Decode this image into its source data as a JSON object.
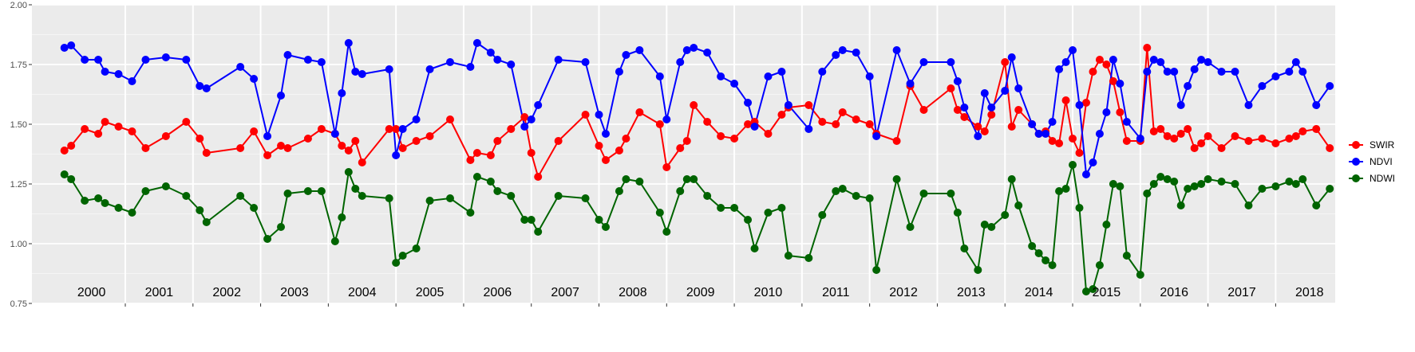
{
  "chart_data": {
    "type": "line",
    "title": "",
    "xlabel": "",
    "ylabel": "",
    "ylim": [
      0.75,
      2.0
    ],
    "xlim": [
      1999.62,
      2018.88
    ],
    "y_ticks": [
      {
        "value": 0.75,
        "label": "0.75"
      },
      {
        "value": 1.0,
        "label": "1.00"
      },
      {
        "value": 1.25,
        "label": "1.25"
      },
      {
        "value": 1.5,
        "label": "1.50"
      },
      {
        "value": 1.75,
        "label": "1.75"
      },
      {
        "value": 2.0,
        "label": "2.00"
      }
    ],
    "year_labels": [
      {
        "year": 2000,
        "label": "2000"
      },
      {
        "year": 2001,
        "label": "2001"
      },
      {
        "year": 2002,
        "label": "2002"
      },
      {
        "year": 2003,
        "label": "2003"
      },
      {
        "year": 2004,
        "label": "2004"
      },
      {
        "year": 2005,
        "label": "2005"
      },
      {
        "year": 2006,
        "label": "2006"
      },
      {
        "year": 2007,
        "label": "2007"
      },
      {
        "year": 2008,
        "label": "2008"
      },
      {
        "year": 2009,
        "label": "2009"
      },
      {
        "year": 2010,
        "label": "2010"
      },
      {
        "year": 2011,
        "label": "2011"
      },
      {
        "year": 2012,
        "label": "2012"
      },
      {
        "year": 2013,
        "label": "2013"
      },
      {
        "year": 2014,
        "label": "2014"
      },
      {
        "year": 2015,
        "label": "2015"
      },
      {
        "year": 2016,
        "label": "2016"
      },
      {
        "year": 2017,
        "label": "2017"
      },
      {
        "year": 2018,
        "label": "2018"
      }
    ],
    "year_boundaries": [
      2001,
      2002,
      2003,
      2004,
      2005,
      2006,
      2007,
      2008,
      2009,
      2010,
      2011,
      2012,
      2013,
      2014,
      2015,
      2016,
      2017,
      2018
    ],
    "x": [
      2000.1,
      2000.2,
      2000.4,
      2000.6,
      2000.7,
      2000.9,
      2001.1,
      2001.3,
      2001.6,
      2001.9,
      2002.1,
      2002.2,
      2002.7,
      2002.9,
      2003.1,
      2003.3,
      2003.4,
      2003.7,
      2003.9,
      2004.1,
      2004.2,
      2004.3,
      2004.4,
      2004.5,
      2004.9,
      2005.0,
      2005.1,
      2005.3,
      2005.5,
      2005.8,
      2006.1,
      2006.2,
      2006.4,
      2006.5,
      2006.7,
      2006.9,
      2007.0,
      2007.1,
      2007.4,
      2007.8,
      2008.0,
      2008.1,
      2008.3,
      2008.4,
      2008.6,
      2008.9,
      2009.0,
      2009.2,
      2009.3,
      2009.4,
      2009.6,
      2009.8,
      2010.0,
      2010.2,
      2010.3,
      2010.5,
      2010.7,
      2010.8,
      2011.1,
      2011.3,
      2011.5,
      2011.6,
      2011.8,
      2012.0,
      2012.1,
      2012.4,
      2012.6,
      2012.8,
      2013.2,
      2013.3,
      2013.4,
      2013.6,
      2013.7,
      2013.8,
      2014.0,
      2014.1,
      2014.2,
      2014.4,
      2014.5,
      2014.6,
      2014.7,
      2014.8,
      2014.9,
      2015.0,
      2015.1,
      2015.2,
      2015.3,
      2015.4,
      2015.5,
      2015.6,
      2015.7,
      2015.8,
      2016.0,
      2016.1,
      2016.2,
      2016.3,
      2016.4,
      2016.5,
      2016.6,
      2016.7,
      2016.8,
      2016.9,
      2017.0,
      2017.2,
      2017.4,
      2017.6,
      2017.8,
      2018.0,
      2018.2,
      2018.3,
      2018.4,
      2018.6,
      2018.8
    ],
    "series": [
      {
        "name": "SWIR",
        "color": "#ff0000",
        "values": [
          1.39,
          1.41,
          1.48,
          1.46,
          1.51,
          1.49,
          1.47,
          1.4,
          1.45,
          1.51,
          1.44,
          1.38,
          1.4,
          1.47,
          1.37,
          1.41,
          1.4,
          1.44,
          1.48,
          1.46,
          1.41,
          1.39,
          1.43,
          1.34,
          1.48,
          1.48,
          1.4,
          1.43,
          1.45,
          1.52,
          1.35,
          1.38,
          1.37,
          1.43,
          1.48,
          1.53,
          1.38,
          1.28,
          1.43,
          1.54,
          1.41,
          1.35,
          1.39,
          1.44,
          1.55,
          1.5,
          1.32,
          1.4,
          1.43,
          1.58,
          1.51,
          1.45,
          1.44,
          1.5,
          1.51,
          1.46,
          1.54,
          1.57,
          1.58,
          1.51,
          1.5,
          1.55,
          1.52,
          1.5,
          1.46,
          1.43,
          1.66,
          1.56,
          1.65,
          1.56,
          1.53,
          1.49,
          1.47,
          1.54,
          1.76,
          1.49,
          1.56,
          1.5,
          1.46,
          1.47,
          1.43,
          1.42,
          1.6,
          1.44,
          1.38,
          1.59,
          1.72,
          1.77,
          1.75,
          1.68,
          1.55,
          1.43,
          1.43,
          1.82,
          1.47,
          1.48,
          1.45,
          1.44,
          1.46,
          1.48,
          1.4,
          1.42,
          1.45,
          1.4,
          1.45,
          1.43,
          1.44,
          1.42,
          1.44,
          1.45,
          1.47,
          1.48,
          1.4
        ]
      },
      {
        "name": "NDVI",
        "color": "#0000ff",
        "values": [
          1.82,
          1.83,
          1.77,
          1.77,
          1.72,
          1.71,
          1.68,
          1.77,
          1.78,
          1.77,
          1.66,
          1.65,
          1.74,
          1.69,
          1.45,
          1.62,
          1.79,
          1.77,
          1.76,
          1.46,
          1.63,
          1.84,
          1.72,
          1.71,
          1.73,
          1.37,
          1.48,
          1.52,
          1.73,
          1.76,
          1.74,
          1.84,
          1.8,
          1.77,
          1.75,
          1.49,
          1.52,
          1.58,
          1.77,
          1.76,
          1.54,
          1.46,
          1.72,
          1.79,
          1.81,
          1.7,
          1.52,
          1.76,
          1.81,
          1.82,
          1.8,
          1.7,
          1.67,
          1.59,
          1.49,
          1.7,
          1.72,
          1.58,
          1.48,
          1.72,
          1.79,
          1.81,
          1.8,
          1.7,
          1.45,
          1.81,
          1.67,
          1.76,
          1.76,
          1.68,
          1.57,
          1.45,
          1.63,
          1.57,
          1.64,
          1.78,
          1.65,
          1.5,
          1.46,
          1.46,
          1.51,
          1.73,
          1.76,
          1.81,
          1.58,
          1.29,
          1.34,
          1.46,
          1.55,
          1.77,
          1.67,
          1.51,
          1.44,
          1.72,
          1.77,
          1.76,
          1.72,
          1.72,
          1.58,
          1.66,
          1.73,
          1.77,
          1.76,
          1.72,
          1.72,
          1.58,
          1.66,
          1.7,
          1.72,
          1.76,
          1.72,
          1.58,
          1.66
        ]
      },
      {
        "name": "NDWI",
        "color": "#006400",
        "values": [
          1.29,
          1.27,
          1.18,
          1.19,
          1.17,
          1.15,
          1.13,
          1.22,
          1.24,
          1.2,
          1.14,
          1.09,
          1.2,
          1.15,
          1.02,
          1.07,
          1.21,
          1.22,
          1.22,
          1.01,
          1.11,
          1.3,
          1.23,
          1.2,
          1.19,
          0.92,
          0.95,
          0.98,
          1.18,
          1.19,
          1.13,
          1.28,
          1.26,
          1.22,
          1.2,
          1.1,
          1.1,
          1.05,
          1.2,
          1.19,
          1.1,
          1.07,
          1.22,
          1.27,
          1.26,
          1.13,
          1.05,
          1.22,
          1.27,
          1.27,
          1.2,
          1.15,
          1.15,
          1.1,
          0.98,
          1.13,
          1.15,
          0.95,
          0.94,
          1.12,
          1.22,
          1.23,
          1.2,
          1.19,
          0.89,
          1.27,
          1.07,
          1.21,
          1.21,
          1.13,
          0.98,
          0.89,
          1.08,
          1.07,
          1.12,
          1.27,
          1.16,
          0.99,
          0.96,
          0.93,
          0.91,
          1.22,
          1.23,
          1.33,
          1.15,
          0.8,
          0.81,
          0.91,
          1.08,
          1.25,
          1.24,
          0.95,
          0.87,
          1.21,
          1.25,
          1.28,
          1.27,
          1.26,
          1.16,
          1.23,
          1.24,
          1.25,
          1.27,
          1.26,
          1.25,
          1.16,
          1.23,
          1.24,
          1.26,
          1.25,
          1.27,
          1.16,
          1.23
        ]
      }
    ],
    "grid": true,
    "legend_position": "right"
  }
}
